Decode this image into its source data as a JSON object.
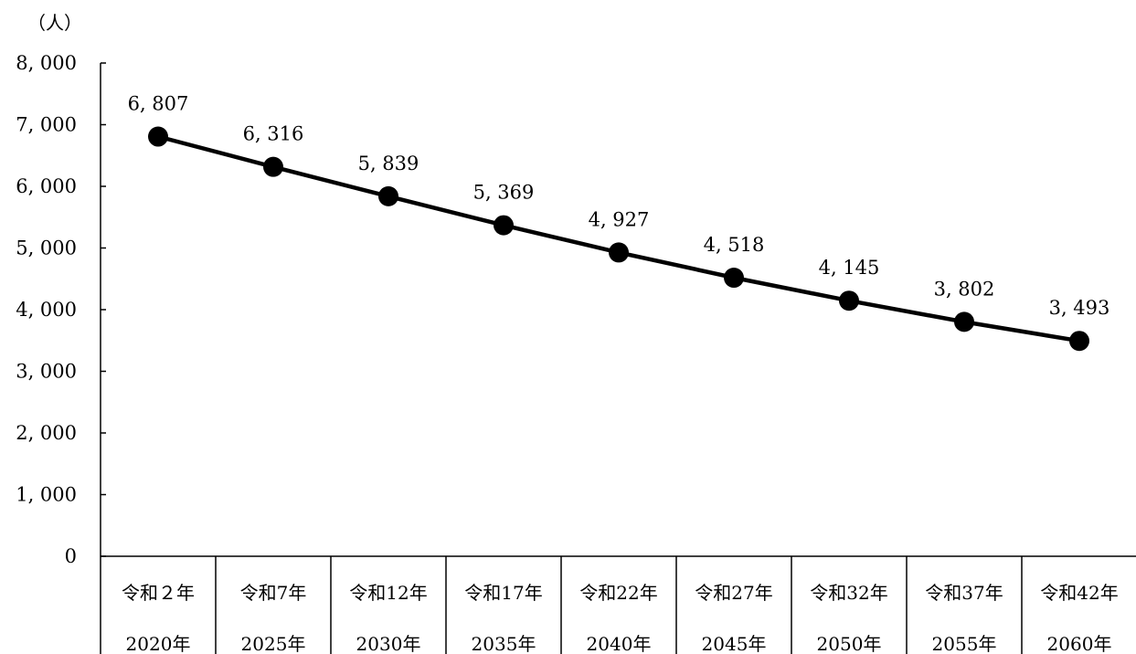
{
  "chart_data": {
    "type": "line",
    "title": "",
    "ylabel": "（人）",
    "xlabel": "",
    "ylim": [
      0,
      8000
    ],
    "ytick_values": [
      0,
      1000,
      2000,
      3000,
      4000,
      5000,
      6000,
      7000,
      8000
    ],
    "ytick_labels": [
      "0",
      "1, 000",
      "2, 000",
      "3, 000",
      "4, 000",
      "5, 000",
      "6, 000",
      "7, 000",
      "8, 000"
    ],
    "categories": [
      {
        "era": "令和２年",
        "year": "2020年"
      },
      {
        "era": "令和7年",
        "year": "2025年"
      },
      {
        "era": "令和12年",
        "year": "2030年"
      },
      {
        "era": "令和17年",
        "year": "2035年"
      },
      {
        "era": "令和22年",
        "year": "2040年"
      },
      {
        "era": "令和27年",
        "year": "2045年"
      },
      {
        "era": "令和32年",
        "year": "2050年"
      },
      {
        "era": "令和37年",
        "year": "2055年"
      },
      {
        "era": "令和42年",
        "year": "2060年"
      }
    ],
    "series": [
      {
        "values": [
          6807,
          6316,
          5839,
          5369,
          4927,
          4518,
          4145,
          3802,
          3493
        ],
        "data_labels": [
          "6, 807",
          "6, 316",
          "5, 839",
          "5, 369",
          "4, 927",
          "4, 518",
          "4, 145",
          "3, 802",
          "3, 493"
        ],
        "color": "#000000",
        "marker": "filled-circle"
      }
    ],
    "grid": false,
    "legend": "none"
  }
}
